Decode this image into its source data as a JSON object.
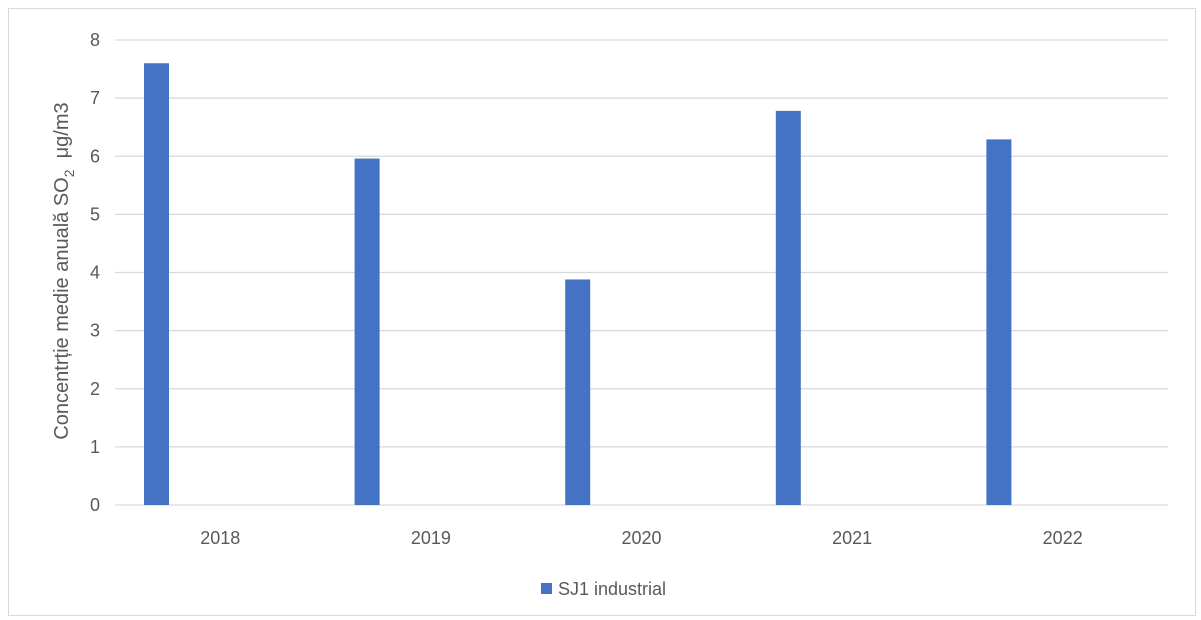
{
  "chart_data": {
    "type": "bar",
    "categories": [
      "2018",
      "2019",
      "2020",
      "2021",
      "2022"
    ],
    "series": [
      {
        "name": "SJ1 industrial",
        "values": [
          7.6,
          5.96,
          3.88,
          6.78,
          6.29
        ],
        "color": "#4472c4"
      }
    ],
    "ylim": [
      0,
      8
    ],
    "yticks": [
      "0",
      "1",
      "2",
      "3",
      "4",
      "5",
      "6",
      "7",
      "8"
    ],
    "ylabel": {
      "main": "Concentrție medie anuală SO",
      "sub": "2",
      "unit": "μg/m3"
    },
    "xlabel": "",
    "grid": true,
    "legend_position": "bottom",
    "colors": {
      "grid": "#d9d9d9",
      "text": "#595959",
      "frame": "#d9d9d9"
    }
  }
}
